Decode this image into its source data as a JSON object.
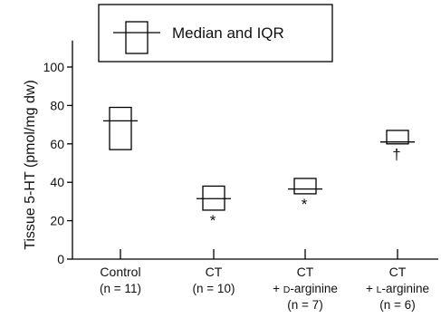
{
  "chart_data": {
    "type": "box",
    "ylabel": "Tissue 5-HT (pmol/mg dw)",
    "ylim": [
      0,
      110
    ],
    "yticks": [
      0,
      20,
      40,
      60,
      80,
      100
    ],
    "ytick_labels": [
      "0",
      "20",
      "40",
      "60",
      "80",
      "100"
    ],
    "grid": false,
    "legend": {
      "label": "Median and IQR",
      "position": "top"
    },
    "groups": [
      {
        "name": "Control",
        "n_label": "(n = 11)",
        "q1": 57,
        "median": 72,
        "q3": 79,
        "annotation": ""
      },
      {
        "name": "CT",
        "n_label": "(n = 10)",
        "q1": 25.5,
        "median": 31.5,
        "q3": 38,
        "annotation": "*"
      },
      {
        "name": "CT",
        "prefix": "+",
        "treatment_initial": "D",
        "treatment_rest": "-arginine",
        "n_label": "(n = 7)",
        "q1": 34,
        "median": 36.5,
        "q3": 42,
        "annotation": "*"
      },
      {
        "name": "CT",
        "prefix": "+",
        "treatment_initial": "L",
        "treatment_rest": "-arginine",
        "n_label": "(n = 6)",
        "q1": 60,
        "median": 61,
        "q3": 67,
        "annotation": "†"
      }
    ]
  }
}
